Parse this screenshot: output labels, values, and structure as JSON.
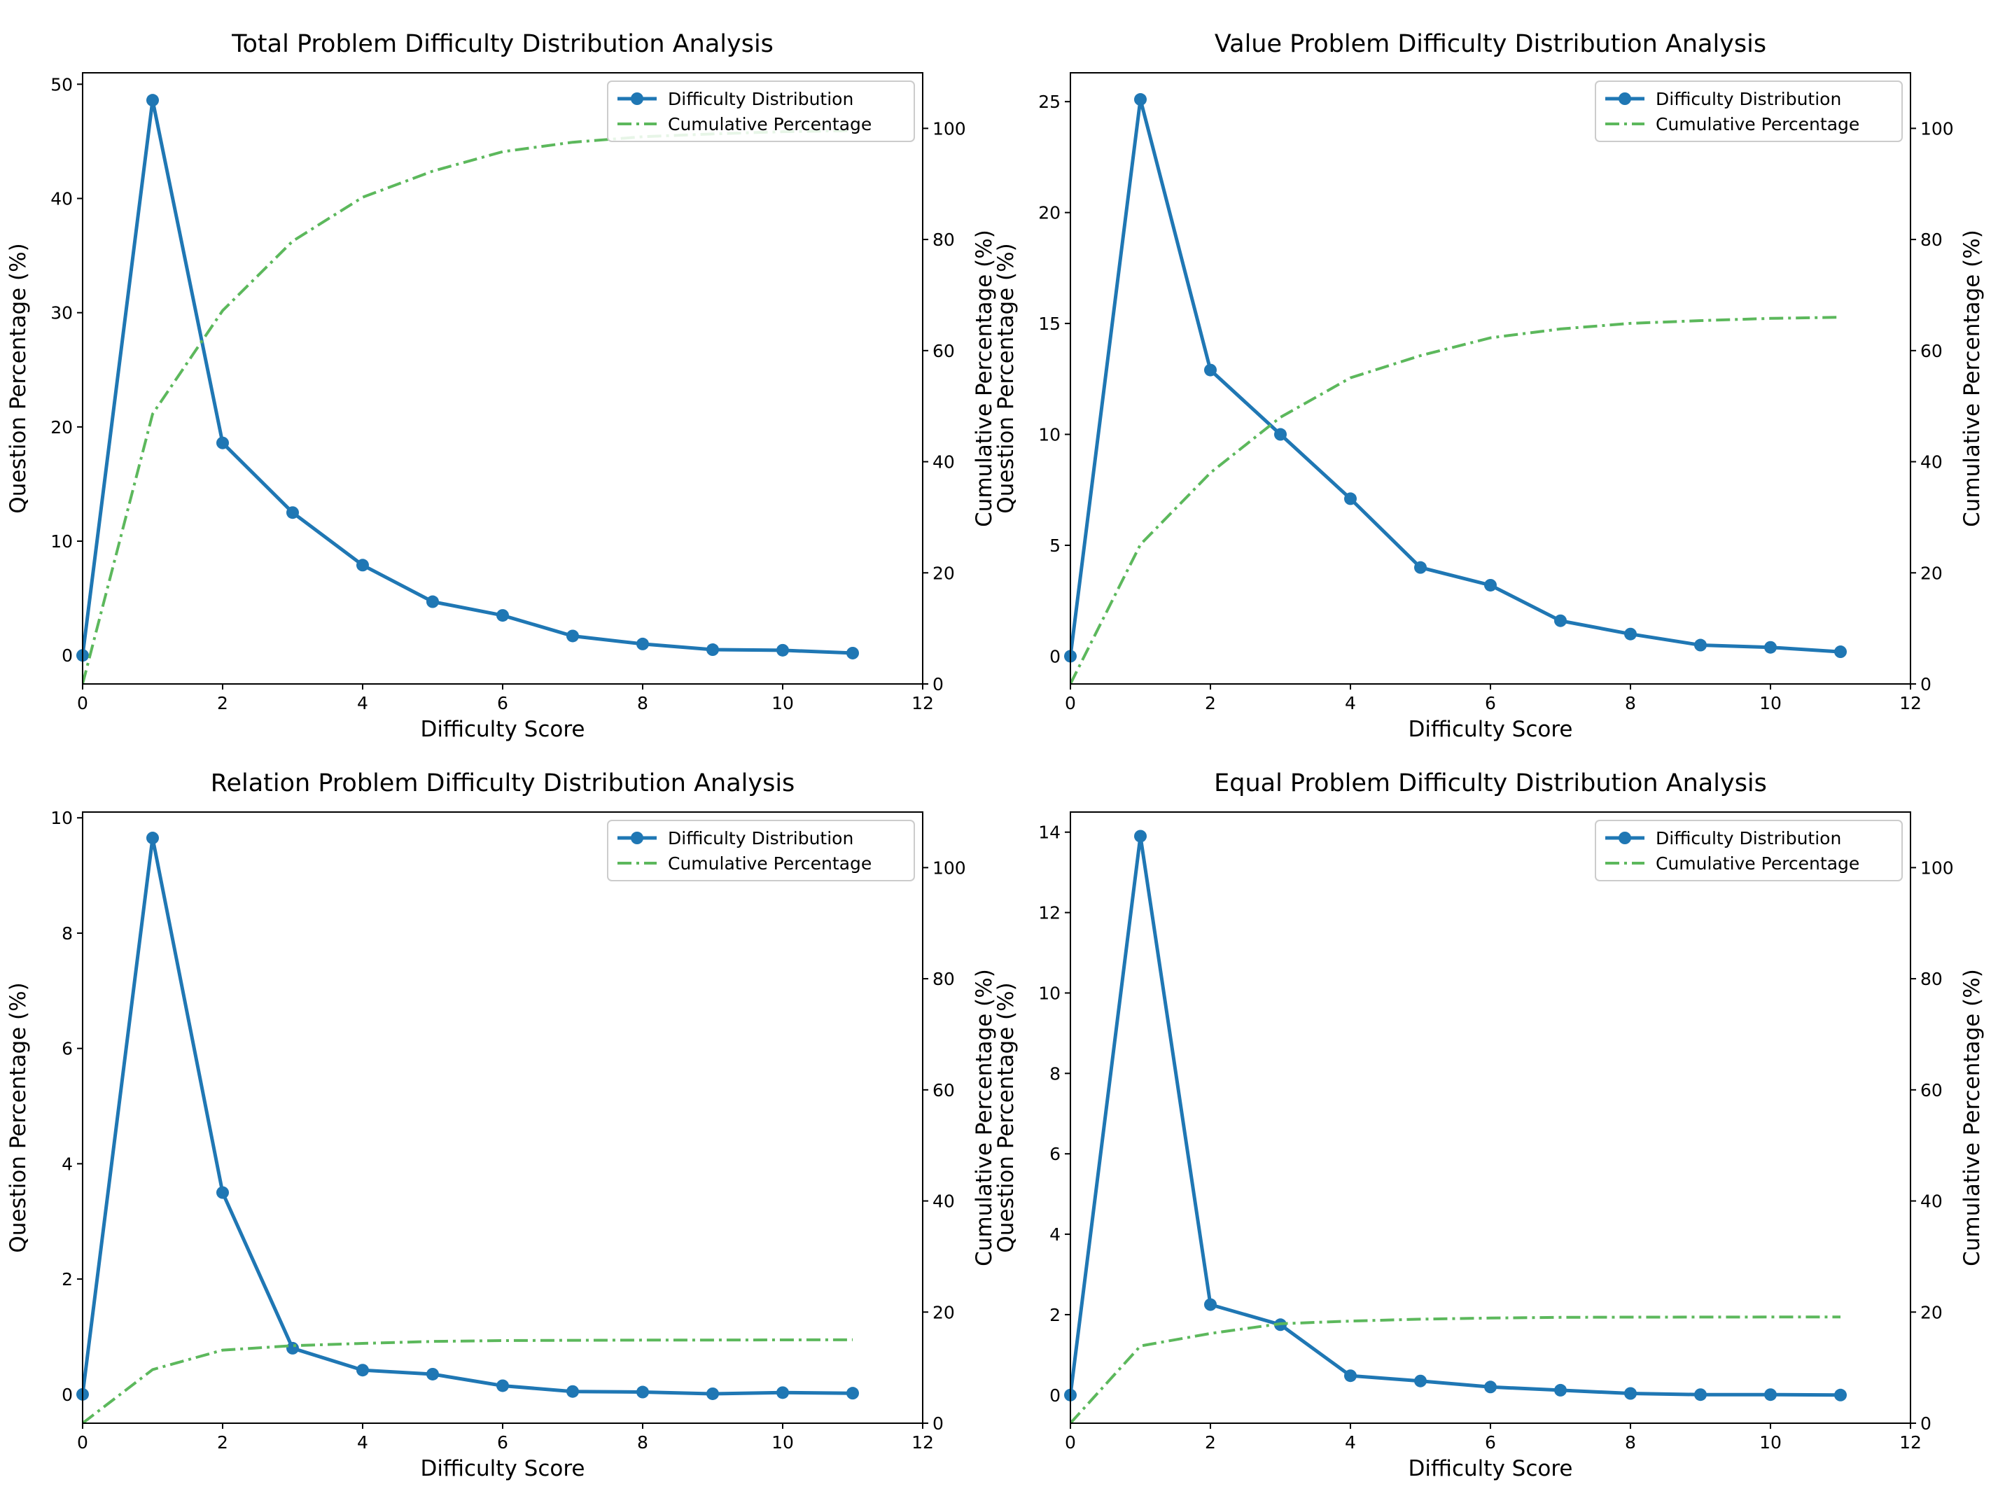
{
  "chart_data": [
    {
      "type": "line",
      "title": "Total Problem Difficulty Distribution Analysis",
      "xlabel": "Difficulty Score",
      "ylabel": "Question Percentage (%)",
      "y2label": "Cumulative Percentage (%)",
      "xlim": [
        0,
        12
      ],
      "ylim": [
        -2.5,
        51
      ],
      "y2lim": [
        0,
        110
      ],
      "xticks": [
        0,
        2,
        4,
        6,
        8,
        10,
        12
      ],
      "yticks": [
        0,
        10,
        20,
        30,
        40,
        50
      ],
      "y2ticks": [
        0,
        20,
        40,
        60,
        80,
        100
      ],
      "legend": "top-right",
      "x": [
        0,
        1,
        2,
        3,
        4,
        5,
        6,
        7,
        8,
        9,
        10,
        11
      ],
      "series": [
        {
          "name": "Difficulty Distribution",
          "axis": "left",
          "color": "#1f77b4",
          "values": [
            0,
            48.6,
            18.6,
            12.5,
            7.9,
            4.7,
            3.5,
            1.7,
            1.0,
            0.5,
            0.45,
            0.2
          ]
        },
        {
          "name": "Cumulative Percentage",
          "axis": "right",
          "color": "#5cb85c",
          "values": [
            0,
            48.6,
            67.2,
            79.7,
            87.6,
            92.3,
            95.8,
            97.5,
            98.5,
            99.0,
            99.4,
            99.6
          ]
        }
      ]
    },
    {
      "type": "line",
      "title": "Value Problem Difficulty Distribution Analysis",
      "xlabel": "Difficulty Score",
      "ylabel": "Question Percentage (%)",
      "y2label": "Cumulative Percentage (%)",
      "xlim": [
        0,
        12
      ],
      "ylim": [
        -1.25,
        26.3
      ],
      "y2lim": [
        0,
        110
      ],
      "xticks": [
        0,
        2,
        4,
        6,
        8,
        10,
        12
      ],
      "yticks": [
        0,
        5,
        10,
        15,
        20,
        25
      ],
      "y2ticks": [
        0,
        20,
        40,
        60,
        80,
        100
      ],
      "legend": "top-right",
      "x": [
        0,
        1,
        2,
        3,
        4,
        5,
        6,
        7,
        8,
        9,
        10,
        11
      ],
      "series": [
        {
          "name": "Difficulty Distribution",
          "axis": "left",
          "color": "#1f77b4",
          "values": [
            0,
            25.1,
            12.9,
            10.0,
            7.1,
            4.0,
            3.2,
            1.6,
            1.0,
            0.5,
            0.4,
            0.2
          ]
        },
        {
          "name": "Cumulative Percentage",
          "axis": "right",
          "color": "#5cb85c",
          "values": [
            0,
            25.1,
            38.0,
            48.0,
            55.1,
            59.1,
            62.3,
            63.9,
            64.9,
            65.4,
            65.8,
            66.0
          ]
        }
      ]
    },
    {
      "type": "line",
      "title": "Relation Problem Difficulty Distribution Analysis",
      "xlabel": "Difficulty Score",
      "ylabel": "Question Percentage (%)",
      "y2label": "Cumulative Percentage (%)",
      "xlim": [
        0,
        12
      ],
      "ylim": [
        -0.5,
        10.1
      ],
      "y2lim": [
        0,
        110
      ],
      "xticks": [
        0,
        2,
        4,
        6,
        8,
        10,
        12
      ],
      "yticks": [
        0,
        2,
        4,
        6,
        8,
        10
      ],
      "y2ticks": [
        0,
        20,
        40,
        60,
        80,
        100
      ],
      "legend": "top-right",
      "x": [
        0,
        1,
        2,
        3,
        4,
        5,
        6,
        7,
        8,
        9,
        10,
        11
      ],
      "series": [
        {
          "name": "Difficulty Distribution",
          "axis": "left",
          "color": "#1f77b4",
          "values": [
            0,
            9.65,
            3.5,
            0.8,
            0.42,
            0.35,
            0.15,
            0.05,
            0.04,
            0.01,
            0.03,
            0.02
          ]
        },
        {
          "name": "Cumulative Percentage",
          "axis": "right",
          "color": "#5cb85c",
          "values": [
            0,
            9.65,
            13.15,
            13.95,
            14.37,
            14.72,
            14.87,
            14.92,
            14.96,
            14.97,
            15.0,
            15.02
          ]
        }
      ]
    },
    {
      "type": "line",
      "title": "Equal Problem Difficulty Distribution Analysis",
      "xlabel": "Difficulty Score",
      "ylabel": "Question Percentage (%)",
      "y2label": "Cumulative Percentage (%)",
      "xlim": [
        0,
        12
      ],
      "ylim": [
        -0.7,
        14.5
      ],
      "y2lim": [
        0,
        110
      ],
      "xticks": [
        0,
        2,
        4,
        6,
        8,
        10,
        12
      ],
      "yticks": [
        0,
        2,
        4,
        6,
        8,
        10,
        12,
        14
      ],
      "y2ticks": [
        0,
        20,
        40,
        60,
        80,
        100
      ],
      "legend": "top-right",
      "x": [
        0,
        1,
        2,
        3,
        4,
        5,
        6,
        7,
        8,
        9,
        10,
        11
      ],
      "series": [
        {
          "name": "Difficulty Distribution",
          "axis": "left",
          "color": "#1f77b4",
          "values": [
            0,
            13.9,
            2.25,
            1.75,
            0.48,
            0.35,
            0.2,
            0.12,
            0.04,
            0.01,
            0.01,
            0.0
          ]
        },
        {
          "name": "Cumulative Percentage",
          "axis": "right",
          "color": "#5cb85c",
          "values": [
            0,
            13.9,
            16.15,
            17.9,
            18.38,
            18.73,
            18.93,
            19.05,
            19.09,
            19.1,
            19.11,
            19.11
          ]
        }
      ]
    }
  ]
}
